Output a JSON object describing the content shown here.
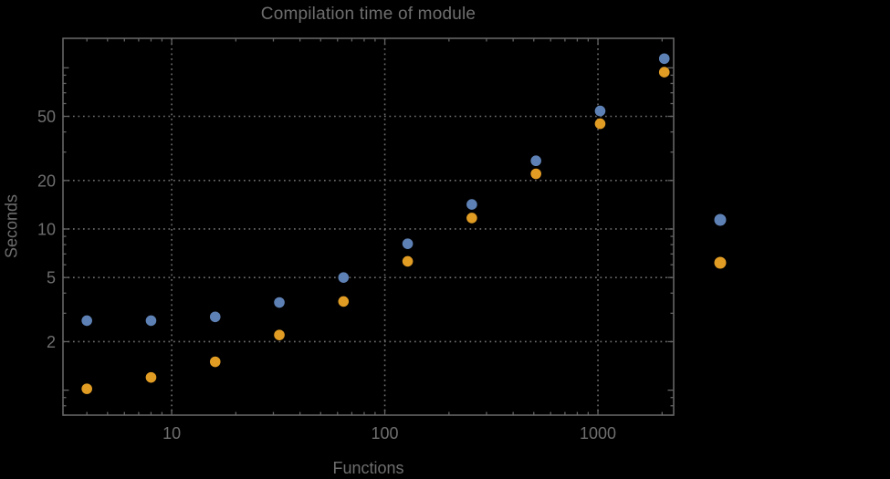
{
  "colors": {
    "background": "#000000",
    "text": "#6e6e6e",
    "frame": "#646464",
    "grid": "#6e6e6e",
    "series_blue": "#5e81b5",
    "series_orange": "#e19c24"
  },
  "chart_data": {
    "type": "scatter",
    "title": "Compilation time of module",
    "xlabel": "Functions",
    "ylabel": "Seconds",
    "x_scale": "log",
    "y_scale": "log",
    "x_range": [
      3.09,
      2266
    ],
    "y_range": [
      0.7,
      152.4
    ],
    "x_ticks": [
      10,
      100,
      1000
    ],
    "y_ticks": [
      2,
      5,
      10,
      20,
      50
    ],
    "grid": "dotted",
    "x": [
      4,
      8,
      16,
      32,
      64,
      128,
      256,
      512,
      1024,
      2048
    ],
    "series": [
      {
        "name": "series-1-blue",
        "color": "#5e81b5",
        "values": [
          2.7,
          2.7,
          2.85,
          3.5,
          5.0,
          8.1,
          14.2,
          26.5,
          54,
          114
        ]
      },
      {
        "name": "series-2-orange",
        "color": "#e19c24",
        "values": [
          1.02,
          1.2,
          1.5,
          2.2,
          3.55,
          6.3,
          11.7,
          22,
          45,
          94
        ]
      }
    ],
    "legend": {
      "position": "right-outside",
      "labels_visible": false
    }
  }
}
